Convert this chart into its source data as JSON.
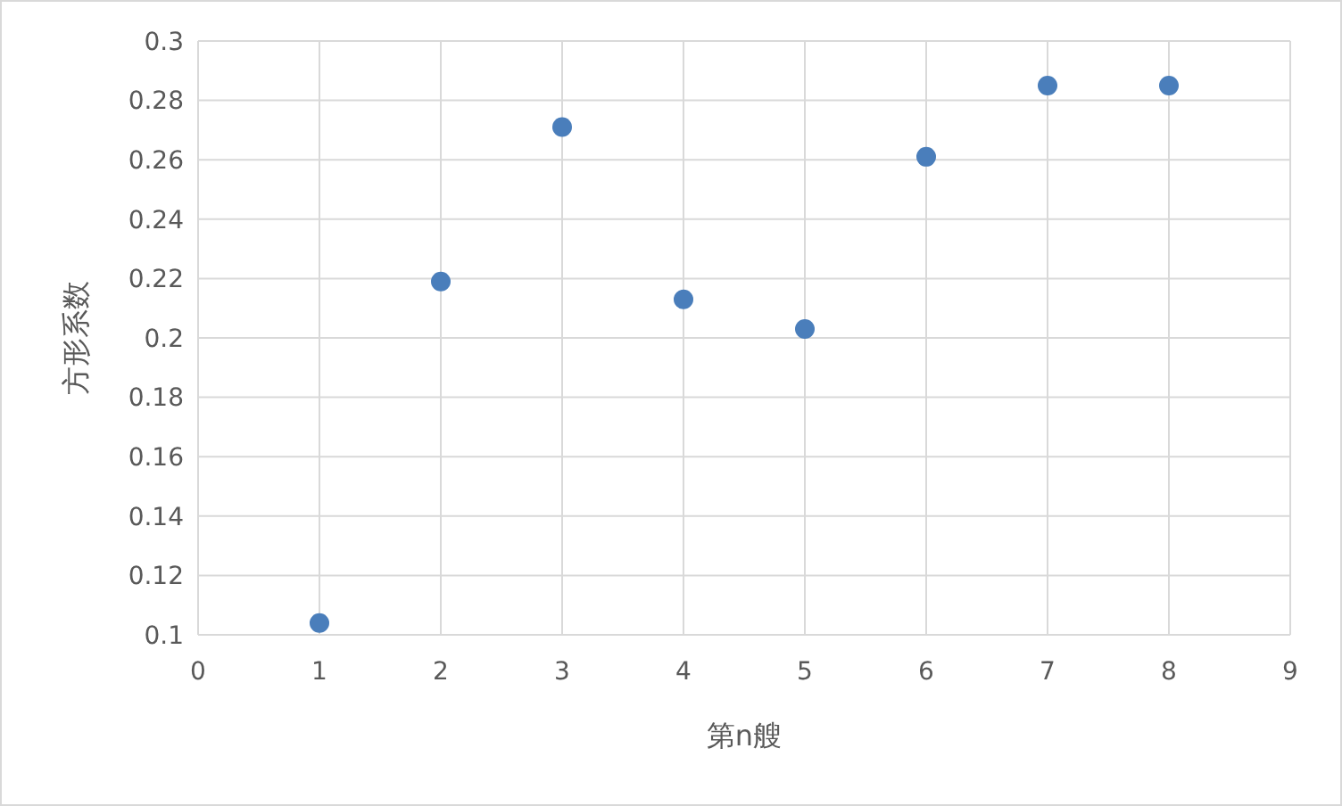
{
  "chart_data": {
    "type": "scatter",
    "xlabel": "第n艘",
    "ylabel": "方形系数",
    "x": [
      1,
      2,
      3,
      4,
      5,
      6,
      7,
      8
    ],
    "series": [
      {
        "color": "#4a7ebb",
        "values": [
          0.104,
          0.219,
          0.271,
          0.213,
          0.203,
          0.261,
          0.285,
          0.285
        ]
      }
    ],
    "xlim": [
      0,
      9
    ],
    "xticks": [
      0,
      1,
      2,
      3,
      4,
      5,
      6,
      7,
      8,
      9
    ],
    "ylim": [
      0.1,
      0.3
    ],
    "yticks": [
      0.1,
      0.12,
      0.14,
      0.16,
      0.18,
      0.2,
      0.22,
      0.24,
      0.26,
      0.28,
      0.3
    ],
    "grid": true,
    "marker": "circle"
  }
}
